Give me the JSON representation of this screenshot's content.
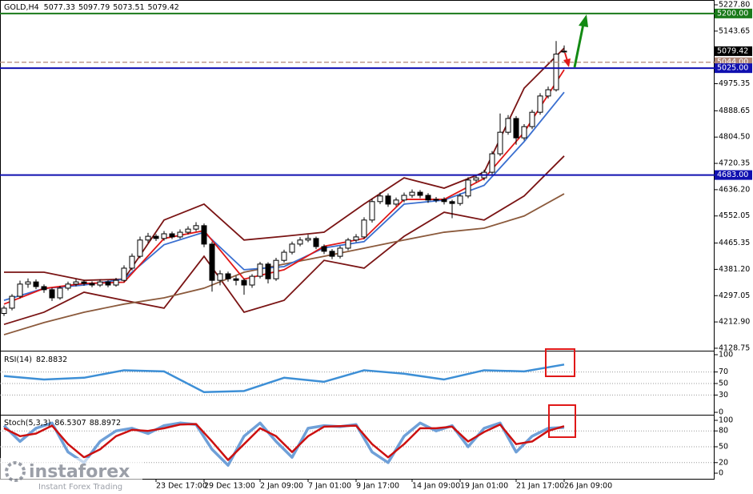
{
  "chart_data": [
    {
      "type": "candlestick",
      "title": "GOLD,H4",
      "categories": [
        null,
        null,
        null,
        null,
        null,
        null,
        null,
        null,
        null,
        null,
        null,
        null,
        null,
        null,
        null,
        null,
        null,
        null,
        null,
        "23 Dec 17:00",
        null,
        null,
        null,
        null,
        null,
        "29 Dec 13:00",
        null,
        null,
        null,
        null,
        null,
        null,
        "2 Jan 09:00",
        null,
        null,
        null,
        null,
        null,
        "7 Jan 01:00",
        null,
        null,
        null,
        null,
        null,
        "9 Jan 17:00",
        null,
        null,
        null,
        null,
        null,
        null,
        "14 Jan 09:00",
        null,
        null,
        null,
        null,
        null,
        "19 Jan 01:00",
        null,
        null,
        null,
        null,
        null,
        null,
        "21 Jan 17:00",
        null,
        null,
        null,
        null,
        null,
        "26 Jan 09:00"
      ],
      "open": [
        4240,
        4257,
        4295,
        4334,
        4341,
        4326,
        4316,
        4290,
        4321,
        4334,
        4341,
        4336,
        4331,
        4341,
        4331,
        4346,
        4385,
        4423,
        4475,
        4487,
        4480,
        4495,
        4485,
        4500,
        4510,
        4521,
        4462,
        4346,
        4367,
        4351,
        4346,
        4331,
        4359,
        4398,
        4351,
        4410,
        4436,
        4462,
        4475,
        4480,
        4454,
        4439,
        4423,
        4449,
        4475,
        4485,
        4539,
        4598,
        4616,
        4590,
        4603,
        4618,
        4628,
        4618,
        4603,
        4605,
        4598,
        4592,
        4616,
        4667,
        4674,
        4692,
        4751,
        4820,
        4864,
        4802,
        4838,
        4884,
        4936,
        4956,
        5077.33
      ],
      "high": [
        4265,
        4302,
        4345,
        4352,
        4349,
        4333,
        4322,
        4328,
        4342,
        4350,
        4347,
        4343,
        4349,
        4346,
        4354,
        4394,
        4432,
        4486,
        4498,
        4494,
        4504,
        4502,
        4509,
        4519,
        4532,
        4528,
        4470,
        4378,
        4374,
        4360,
        4352,
        4366,
        4405,
        4404,
        4418,
        4444,
        4470,
        4484,
        4492,
        4486,
        4461,
        4446,
        4456,
        4482,
        4494,
        4548,
        4607,
        4628,
        4624,
        4611,
        4627,
        4637,
        4635,
        4625,
        4613,
        4612,
        4604,
        4624,
        4676,
        4683,
        4700,
        4760,
        4880,
        4875,
        4872,
        4846,
        4892,
        4945,
        4966,
        5112,
        5097.79
      ],
      "low": [
        4232,
        4250,
        4288,
        4322,
        4318,
        4306,
        4280,
        4284,
        4314,
        4327,
        4329,
        4324,
        4325,
        4324,
        4326,
        4340,
        4378,
        4417,
        4466,
        4472,
        4473,
        4478,
        4479,
        4493,
        4503,
        4452,
        4310,
        4330,
        4342,
        4330,
        4300,
        4322,
        4352,
        4336,
        4344,
        4403,
        4429,
        4455,
        4468,
        4446,
        4430,
        4414,
        4416,
        4442,
        4468,
        4478,
        4531,
        4590,
        4581,
        4583,
        4596,
        4610,
        4609,
        4594,
        4595,
        4589,
        4545,
        4585,
        4609,
        4660,
        4666,
        4685,
        4744,
        4812,
        4780,
        4794,
        4830,
        4876,
        4928,
        4950,
        5073.51
      ],
      "close": [
        4257,
        4295,
        4334,
        4341,
        4326,
        4316,
        4290,
        4321,
        4334,
        4341,
        4336,
        4331,
        4341,
        4331,
        4346,
        4385,
        4423,
        4475,
        4487,
        4480,
        4495,
        4485,
        4500,
        4510,
        4521,
        4462,
        4346,
        4367,
        4351,
        4346,
        4331,
        4359,
        4398,
        4351,
        4410,
        4436,
        4462,
        4475,
        4480,
        4454,
        4439,
        4423,
        4449,
        4475,
        4485,
        4539,
        4598,
        4616,
        4590,
        4603,
        4618,
        4628,
        4618,
        4603,
        4605,
        4598,
        4592,
        4616,
        4667,
        4674,
        4692,
        4751,
        4820,
        4864,
        4802,
        4838,
        4884,
        4936,
        4956,
        5070,
        5079.42
      ],
      "up_color": "#ffffff",
      "down_color": "#000000",
      "wick_color": "#000000",
      "overlay_x": [
        0,
        5,
        10,
        15,
        20,
        25,
        30,
        35,
        40,
        45,
        50,
        55,
        60,
        65,
        70
      ],
      "overlays": [
        {
          "color": "#7a1414",
          "values": [
            4372,
            4372,
            4346,
            4350,
            4539,
            4590,
            4475,
            4487,
            4500,
            4590,
            4674,
            4641,
            4692,
            4961,
            5089
          ]
        },
        {
          "color": "#7a1414",
          "values": [
            4205,
            4244,
            4308,
            4282,
            4257,
            4423,
            4244,
            4282,
            4410,
            4385,
            4487,
            4564,
            4539,
            4616,
            4744
          ]
        },
        {
          "color": "#8b5a3c",
          "values": [
            4172,
            4211,
            4244,
            4270,
            4290,
            4321,
            4372,
            4398,
            4423,
            4449,
            4475,
            4500,
            4513,
            4552,
            4623
          ]
        },
        {
          "color": "#3a6fd0",
          "values": [
            4282,
            4320,
            4331,
            4350,
            4460,
            4500,
            4380,
            4390,
            4450,
            4470,
            4590,
            4603,
            4650,
            4790,
            4948
          ]
        },
        {
          "color": "#e01818",
          "values": [
            4270,
            4320,
            4336,
            4340,
            4480,
            4505,
            4350,
            4380,
            4455,
            4480,
            4605,
            4605,
            4672,
            4820,
            5020
          ]
        }
      ],
      "levels": [
        {
          "value": 5200,
          "label": "5200.00",
          "color": "#1a7a1a",
          "style": "solid"
        },
        {
          "value": 5044,
          "label": "5044.00",
          "color": "#b08878",
          "style": "dashed"
        },
        {
          "value": 5025,
          "label": "5025.00",
          "color": "#1010b0",
          "style": "solid"
        },
        {
          "value": 4683,
          "label": "4683.00",
          "color": "#1010b0",
          "style": "solid"
        }
      ],
      "ylim": [
        4120.9,
        5243.2
      ],
      "yticks": [
        {
          "value": 5227.8,
          "label": "5227.80"
        },
        5143.65,
        4975.35,
        4888.65,
        {
          "value": 4804.5,
          "label": "4804.50"
        },
        4720.35,
        {
          "value": 4636.2,
          "label": "4636.20"
        },
        4552.05,
        4465.35,
        {
          "value": 4381.2,
          "label": "4381.20"
        },
        4297.05,
        {
          "value": 4212.9,
          "label": "4212.90"
        },
        4128.75
      ]
    },
    {
      "type": "line",
      "title": "RSI(14)",
      "x": [
        0,
        5,
        10,
        15,
        20,
        25,
        30,
        35,
        40,
        45,
        50,
        55,
        60,
        65,
        70
      ],
      "series": [
        {
          "color": "#3d8fd6",
          "values": [
            63,
            57,
            60,
            73,
            71,
            35,
            37,
            60,
            53,
            73,
            67,
            57,
            73,
            71,
            82.8832
          ]
        }
      ],
      "ylim": [
        0,
        100
      ],
      "yticks": [
        100,
        70,
        50,
        30,
        0
      ]
    },
    {
      "type": "line",
      "title": "Stoch(5,3,3)",
      "x": [
        0,
        2,
        4,
        6,
        8,
        10,
        12,
        14,
        16,
        18,
        20,
        22,
        24,
        26,
        28,
        30,
        32,
        34,
        36,
        38,
        40,
        42,
        44,
        46,
        48,
        50,
        52,
        54,
        56,
        58,
        60,
        62,
        64,
        66,
        68,
        70
      ],
      "series": [
        {
          "color": "#6fa0d8",
          "values": [
            90,
            60,
            85,
            95,
            40,
            20,
            60,
            80,
            85,
            75,
            90,
            95,
            92,
            45,
            15,
            70,
            95,
            60,
            30,
            85,
            90,
            88,
            92,
            40,
            20,
            70,
            95,
            80,
            90,
            50,
            85,
            95,
            40,
            70,
            85,
            86.5307
          ]
        },
        {
          "color": "#cc1010",
          "values": [
            85,
            70,
            75,
            90,
            55,
            30,
            45,
            70,
            82,
            80,
            85,
            92,
            93,
            60,
            25,
            55,
            85,
            70,
            40,
            70,
            88,
            89,
            90,
            55,
            30,
            55,
            85,
            85,
            88,
            60,
            78,
            92,
            55,
            60,
            80,
            88.8972
          ]
        }
      ],
      "ylim": [
        0,
        100
      ],
      "yticks": [
        100,
        80,
        50,
        20,
        0
      ]
    }
  ],
  "watermark": {
    "brand": "instaforex",
    "tagline": "Instant Forex Trading"
  }
}
